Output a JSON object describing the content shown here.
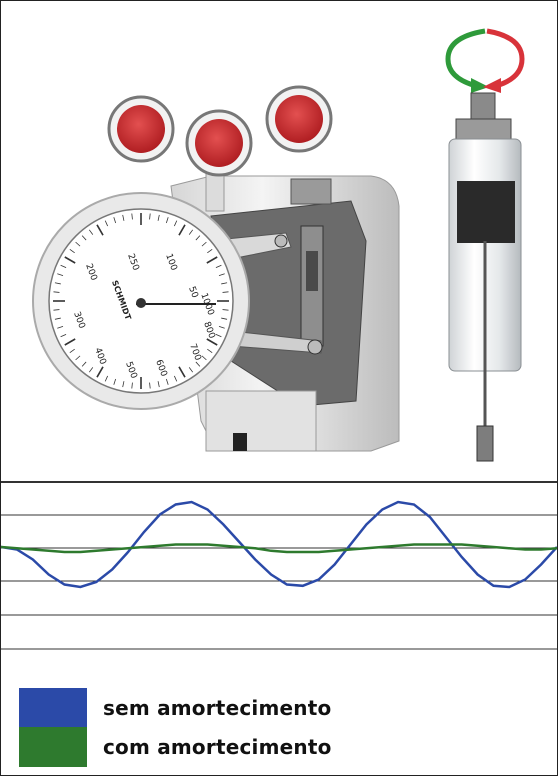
{
  "gauge": {
    "brand": "SCHMIDT",
    "dial_labels": [
      "250",
      "200",
      "300",
      "400",
      "500",
      "600",
      "700",
      "800",
      "1000",
      "50",
      "100"
    ]
  },
  "rotation_indicator": {
    "arrow_colors": [
      "#2e9a3a",
      "#d8333a"
    ]
  },
  "legend": {
    "items": [
      {
        "label": "sem amortecimento",
        "color": "#2b4aa8"
      },
      {
        "label": "com amortecimento",
        "color": "#2e7a2e"
      }
    ]
  },
  "graph": {
    "undamped": [
      0,
      -2,
      -10,
      -22,
      -30,
      -32,
      -28,
      -18,
      -4,
      12,
      26,
      34,
      36,
      30,
      18,
      4,
      -10,
      -22,
      -30,
      -31,
      -26,
      -14,
      2,
      18,
      30,
      36,
      34,
      24,
      8,
      -8,
      -22,
      -31,
      -32,
      -26,
      -14,
      0
    ],
    "damped": [
      0,
      -1,
      -2,
      -3,
      -4,
      -4,
      -3,
      -2,
      -1,
      0,
      1,
      2,
      2,
      2,
      1,
      0,
      -1,
      -3,
      -4,
      -4,
      -4,
      -3,
      -2,
      -1,
      0,
      1,
      2,
      2,
      2,
      2,
      1,
      0,
      -1,
      -2,
      -2,
      -1
    ]
  }
}
